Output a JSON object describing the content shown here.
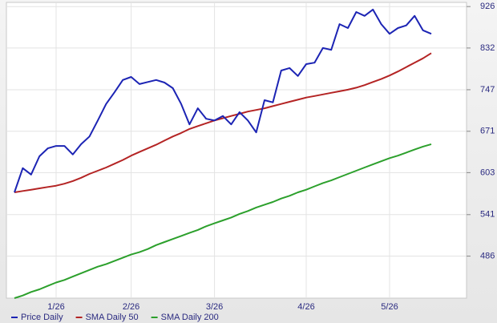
{
  "chart_data": {
    "type": "line",
    "categories": [
      null,
      null,
      null,
      null,
      null,
      "1/26",
      null,
      null,
      null,
      null,
      null,
      null,
      null,
      null,
      "2/26",
      null,
      null,
      null,
      null,
      null,
      null,
      null,
      null,
      null,
      "3/26",
      null,
      null,
      null,
      null,
      null,
      null,
      null,
      null,
      null,
      null,
      "4/26",
      null,
      null,
      null,
      null,
      null,
      null,
      null,
      null,
      null,
      "5/26",
      null,
      null,
      null,
      null,
      null
    ],
    "series": [
      {
        "name": "Price Daily",
        "color": "#1c24b4",
        "values": [
          573,
          610,
          600,
          629,
          642,
          646,
          646,
          632,
          649,
          662,
          690,
          720,
          742,
          766,
          772,
          758,
          762,
          766,
          761,
          750,
          720,
          683,
          712,
          693,
          690,
          698,
          683,
          705,
          690,
          669,
          727,
          723,
          785,
          790,
          774,
          798,
          801,
          832,
          828,
          885,
          876,
          913,
          904,
          919,
          885,
          863,
          876,
          882,
          904,
          871,
          863
        ]
      },
      {
        "name": "SMA Daily 50",
        "color": "#b42424",
        "values": [
          573,
          575,
          577,
          579,
          581,
          583,
          586,
          590,
          595,
          601,
          606,
          611,
          617,
          623,
          630,
          636,
          642,
          648,
          655,
          662,
          668,
          675,
          680,
          685,
          690,
          694,
          698,
          702,
          706,
          709,
          712,
          716,
          720,
          724,
          728,
          732,
          735,
          738,
          741,
          744,
          747,
          751,
          756,
          762,
          768,
          775,
          783,
          792,
          801,
          810,
          821
        ]
      },
      {
        "name": "SMA Daily 200",
        "color": "#2ca02c",
        "values": [
          436,
          439,
          443,
          446,
          450,
          454,
          457,
          461,
          465,
          469,
          473,
          476,
          480,
          484,
          488,
          491,
          495,
          500,
          504,
          508,
          512,
          516,
          520,
          525,
          529,
          533,
          537,
          542,
          546,
          551,
          555,
          559,
          564,
          568,
          573,
          577,
          582,
          587,
          591,
          596,
          601,
          606,
          611,
          616,
          621,
          626,
          630,
          635,
          640,
          645,
          649
        ]
      }
    ],
    "ylim": [
      436,
      936
    ],
    "yticks": [
      486,
      541,
      603,
      671,
      747,
      832,
      926
    ],
    "log_y": true,
    "grid": true,
    "y_axis_side": "right",
    "legend": "bottom"
  }
}
